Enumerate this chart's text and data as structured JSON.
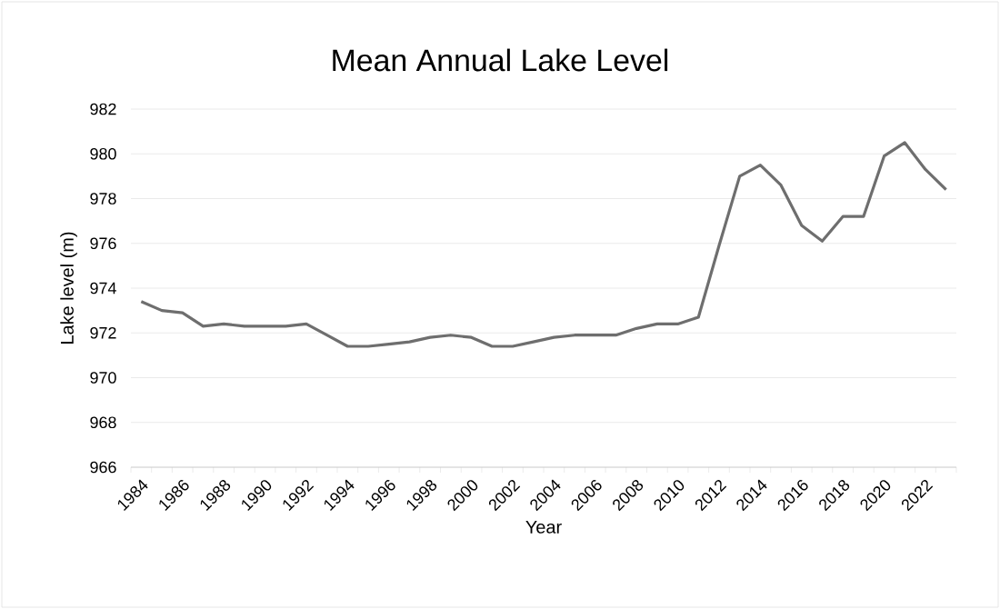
{
  "chart_data": {
    "type": "line",
    "title": "Mean  Annual Lake  Level",
    "xlabel": "Year",
    "ylabel": "Lake level (m)",
    "categories": [
      "1984",
      null,
      "1986",
      null,
      "1988",
      null,
      "1990",
      null,
      "1992",
      null,
      "1994",
      null,
      "1996",
      null,
      "1998",
      null,
      "2000",
      null,
      "2002",
      null,
      "2004",
      null,
      "2006",
      null,
      "2008",
      null,
      "2010",
      null,
      "2012",
      null,
      "2014",
      null,
      "2016",
      null,
      "2018",
      null,
      "2020",
      null,
      "2022",
      null
    ],
    "series": [
      {
        "color": "#6e6e6e",
        "values": [
          973.4,
          973.0,
          972.9,
          972.3,
          972.4,
          972.3,
          972.3,
          972.3,
          972.4,
          971.9,
          971.4,
          971.4,
          971.5,
          971.6,
          971.8,
          971.9,
          971.8,
          971.4,
          971.4,
          971.6,
          971.8,
          971.9,
          971.9,
          971.9,
          972.2,
          972.4,
          972.4,
          972.7,
          975.9,
          979.0,
          979.5,
          978.6,
          976.8,
          976.1,
          977.2,
          977.2,
          979.9,
          980.5,
          979.3,
          978.4
        ]
      }
    ],
    "ylim": [
      966,
      982
    ],
    "yticks": [
      966,
      968,
      970,
      972,
      974,
      976,
      978,
      980,
      982
    ],
    "grid": "y",
    "marker": "none",
    "line_style": "solid"
  }
}
